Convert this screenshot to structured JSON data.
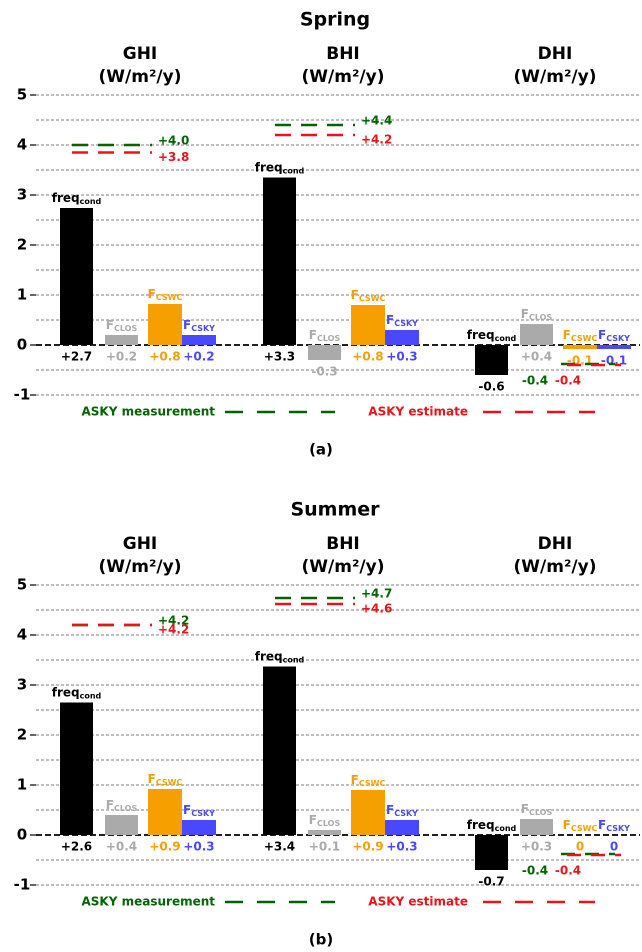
{
  "chart_data": [
    {
      "type": "bar",
      "title": "Spring",
      "caption": "(a)",
      "categories": [
        "freq",
        "F",
        "F",
        "F"
      ],
      "category_subscripts": [
        "cond",
        "CLOS",
        "CSWC",
        "CSKY"
      ],
      "colors": [
        "#000000",
        "#aaaaaa",
        "#f5a000",
        "#4848ff"
      ],
      "ylim": [
        -1.2,
        5.2
      ],
      "yticks": [
        -1,
        0,
        1,
        2,
        3,
        4,
        5
      ],
      "yminor": [
        -0.5,
        0.5,
        1.5,
        2.5,
        3.5,
        4.5
      ],
      "grid": true,
      "panels": [
        {
          "title": "GHI",
          "unit": "(W/m²/y)",
          "values": [
            2.74,
            0.2,
            0.82,
            0.2
          ],
          "value_labels": [
            "+2.7",
            "+0.2",
            "+0.8",
            "+0.2"
          ],
          "measurement": 4.0,
          "measurement_label": "+4.0",
          "estimate": 3.85,
          "estimate_label": "+3.8"
        },
        {
          "title": "BHI",
          "unit": "(W/m²/y)",
          "values": [
            3.35,
            -0.3,
            0.8,
            0.3
          ],
          "value_labels": [
            "+3.3",
            "-0.3",
            "+0.8",
            "+0.3"
          ],
          "measurement": 4.4,
          "measurement_label": "+4.4",
          "estimate": 4.2,
          "estimate_label": "+4.2"
        },
        {
          "title": "DHI",
          "unit": "(W/m²/y)",
          "values": [
            -0.6,
            0.42,
            -0.08,
            -0.08
          ],
          "value_labels": [
            "-0.6",
            "+0.4",
            "-0.1",
            "-0.1"
          ],
          "measurement": -0.38,
          "measurement_label": "-0.4",
          "estimate": -0.4,
          "estimate_label": "-0.4"
        }
      ],
      "legend": [
        {
          "name": "ASKY measurement",
          "color": "#006400"
        },
        {
          "name": "ASKY estimate",
          "color": "#e8141a"
        }
      ]
    },
    {
      "type": "bar",
      "title": "Summer",
      "caption": "(b)",
      "categories": [
        "freq",
        "F",
        "F",
        "F"
      ],
      "category_subscripts": [
        "cond",
        "CLOS",
        "CSWC",
        "CSKY"
      ],
      "colors": [
        "#000000",
        "#aaaaaa",
        "#f5a000",
        "#4848ff"
      ],
      "ylim": [
        -1.2,
        5.2
      ],
      "yticks": [
        -1,
        0,
        1,
        2,
        3,
        4,
        5
      ],
      "yminor": [
        -0.5,
        0.5,
        1.5,
        2.5,
        3.5,
        4.5
      ],
      "grid": true,
      "panels": [
        {
          "title": "GHI",
          "unit": "(W/m²/y)",
          "values": [
            2.65,
            0.4,
            0.92,
            0.3
          ],
          "value_labels": [
            "+2.6",
            "+0.4",
            "+0.9",
            "+0.3"
          ],
          "measurement": 4.2,
          "measurement_label": "+4.2",
          "estimate": 4.2,
          "estimate_label": "+4.2"
        },
        {
          "title": "BHI",
          "unit": "(W/m²/y)",
          "values": [
            3.37,
            0.1,
            0.9,
            0.3
          ],
          "value_labels": [
            "+3.4",
            "+0.1",
            "+0.9",
            "+0.3"
          ],
          "measurement": 4.74,
          "measurement_label": "+4.7",
          "estimate": 4.62,
          "estimate_label": "+4.6"
        },
        {
          "title": "DHI",
          "unit": "(W/m²/y)",
          "values": [
            -0.7,
            0.32,
            0,
            0
          ],
          "value_labels": [
            "-0.7",
            "+0.3",
            "0",
            "0"
          ],
          "measurement": -0.38,
          "measurement_label": "-0.4",
          "estimate": -0.4,
          "estimate_label": "-0.4"
        }
      ],
      "legend": [
        {
          "name": "ASKY measurement",
          "color": "#006400"
        },
        {
          "name": "ASKY estimate",
          "color": "#e8141a"
        }
      ]
    }
  ]
}
